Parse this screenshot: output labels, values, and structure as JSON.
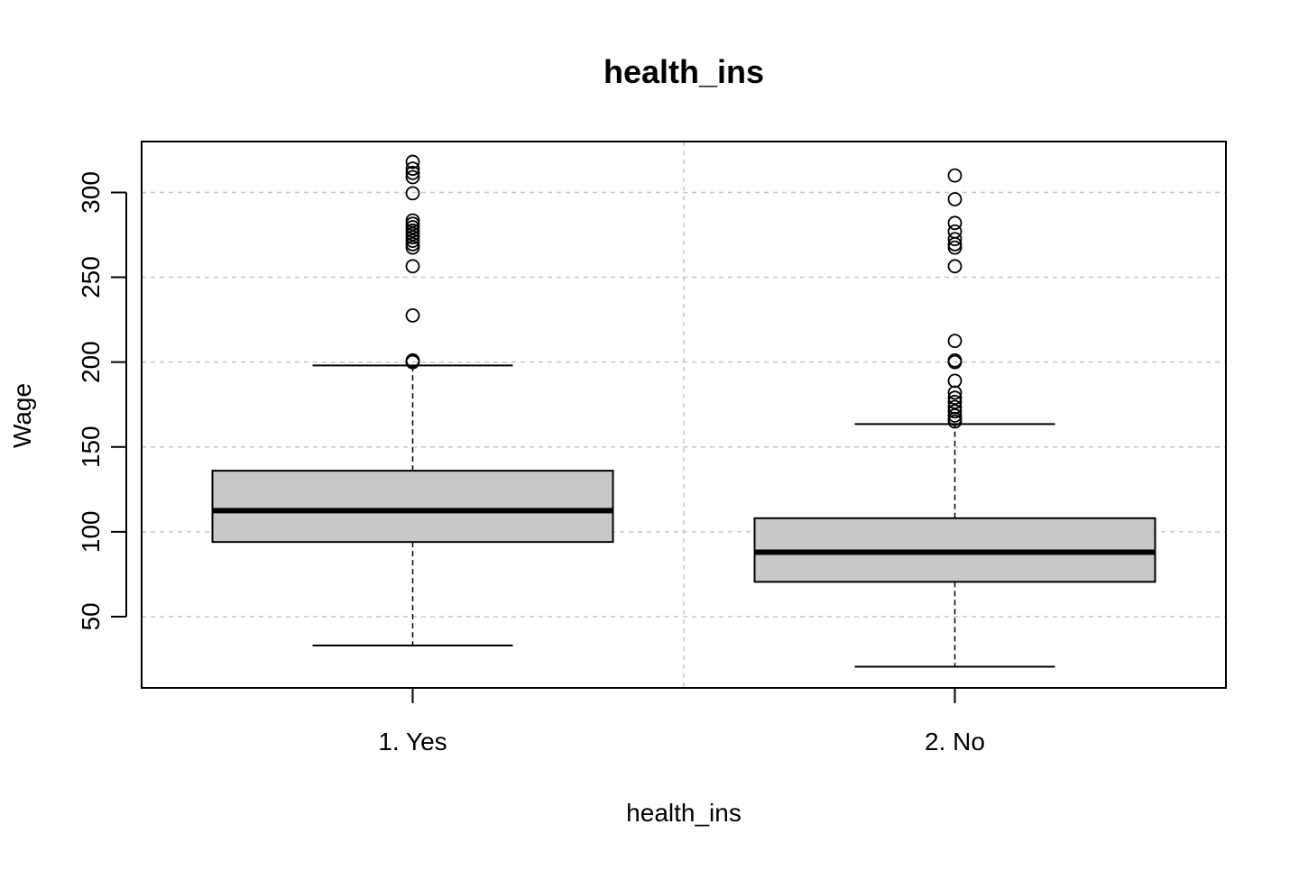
{
  "chart_data": {
    "type": "boxplot",
    "title": "health_ins",
    "xlabel": "health_ins",
    "ylabel": "Wage",
    "ylim": [
      8,
      330
    ],
    "xlim": [
      0.5,
      2.5
    ],
    "y_ticks": [
      50,
      100,
      150,
      200,
      250,
      300
    ],
    "x_grid_positions": [
      0.5,
      1.5,
      2.5
    ],
    "grid": true,
    "colors": {
      "box_fill": "#c8c8c8",
      "stroke": "#000000",
      "grid": "#c6c6c6"
    },
    "categories": [
      "1. Yes",
      "2. No"
    ],
    "boxes": [
      {
        "label": "1. Yes",
        "lower_whisker": 33,
        "q1": 94,
        "median": 112.5,
        "q3": 136,
        "upper_whisker": 198,
        "outliers": [
          200,
          200.5,
          201,
          227.5,
          256.5,
          267.5,
          269.5,
          271.5,
          273.5,
          275.5,
          277.5,
          279.5,
          281.5,
          283.5,
          299.5,
          309,
          311.5,
          314,
          318
        ]
      },
      {
        "label": "2. No",
        "lower_whisker": 20.5,
        "q1": 70.5,
        "median": 88,
        "q3": 108,
        "upper_whisker": 163.5,
        "outliers": [
          165,
          166.5,
          168.5,
          171,
          173.5,
          176.5,
          179,
          182,
          189,
          200,
          201,
          212.5,
          256.5,
          267.5,
          269.5,
          272.5,
          277,
          282,
          296,
          310
        ]
      }
    ]
  }
}
